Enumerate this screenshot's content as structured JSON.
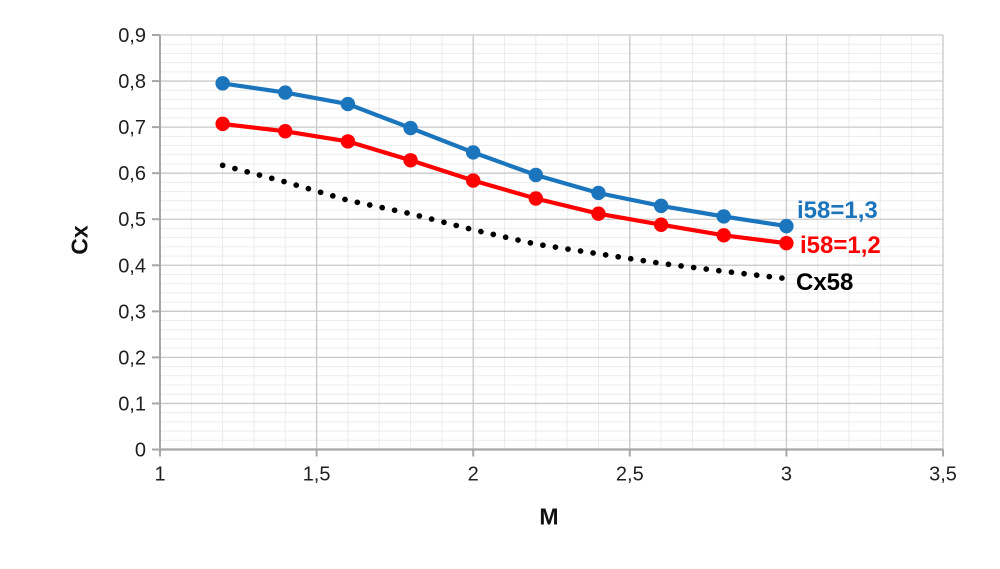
{
  "chart_data": {
    "type": "line",
    "title": "",
    "xlabel": "M",
    "ylabel": "Cx",
    "xlim": [
      1,
      3.5
    ],
    "ylim": [
      0,
      0.9
    ],
    "grid": "major and minor, on",
    "legend_position": "end-of-line labels, right side",
    "x": [
      1.2,
      1.4,
      1.6,
      1.8,
      2.0,
      2.2,
      2.4,
      2.6,
      2.8,
      3.0
    ],
    "series": [
      {
        "name": "i58=1,3",
        "color": "#1b75bc",
        "style": "solid-with-markers",
        "values": [
          0.795,
          0.775,
          0.75,
          0.698,
          0.645,
          0.596,
          0.557,
          0.529,
          0.506,
          0.485
        ]
      },
      {
        "name": "i58=1,2",
        "color": "#ff0000",
        "style": "solid-with-markers",
        "values": [
          0.707,
          0.691,
          0.669,
          0.628,
          0.584,
          0.545,
          0.512,
          0.488,
          0.465,
          0.448
        ]
      },
      {
        "name": "Cx58",
        "color": "#000000",
        "style": "round-dotted",
        "values": [
          0.617,
          0.581,
          0.541,
          0.512,
          0.477,
          0.446,
          0.425,
          0.404,
          0.387,
          0.371
        ]
      }
    ],
    "x_ticks": {
      "values": [
        1,
        1.5,
        2,
        2.5,
        3,
        3.5
      ],
      "labels": [
        "1",
        "1,5",
        "2",
        "2,5",
        "3",
        "3,5"
      ],
      "minor_step": 0.1
    },
    "y_ticks": {
      "values": [
        0,
        0.1,
        0.2,
        0.3,
        0.4,
        0.5,
        0.6,
        0.7,
        0.8,
        0.9
      ],
      "labels": [
        "0",
        "0,1",
        "0,2",
        "0,3",
        "0,4",
        "0,5",
        "0,6",
        "0,7",
        "0,8",
        "0,9"
      ],
      "minor_step": 0.02
    },
    "colors": {
      "major_grid": "#c9c9c9",
      "minor_grid": "#ececec",
      "axis_line": "#a6a6a6",
      "tick_text": "#1f1f1f"
    }
  }
}
